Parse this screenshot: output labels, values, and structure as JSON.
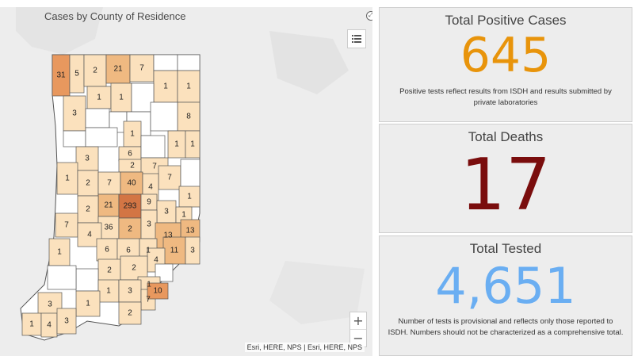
{
  "map": {
    "title": "Cases by County of Residence",
    "attribution": "Esri, HERE, NPS | Esri, HERE, NPS",
    "zoom_in": "+",
    "zoom_out": "−",
    "legend_icon": "list-icon",
    "expand_icon": "expand-icon",
    "colors": {
      "none": "#ffffff",
      "low": "#fbe1bd",
      "mid": "#efb981",
      "high": "#e8985e",
      "max": "#d37544"
    },
    "county_labels": [
      "31",
      "5",
      "2",
      "21",
      "7",
      "1",
      "1",
      "1",
      "1",
      "3",
      "8",
      "1",
      "1",
      "1",
      "6",
      "3",
      "7",
      "1",
      "1",
      "2",
      "2",
      "4",
      "7",
      "7",
      "40",
      "1",
      "21",
      "2",
      "293",
      "9",
      "2",
      "3",
      "36",
      "7",
      "1",
      "3",
      "13",
      "4",
      "1",
      "6",
      "6",
      "1",
      "13",
      "2",
      "4",
      "11",
      "3",
      "2",
      "2",
      "1",
      "1",
      "3",
      "10",
      "7",
      "3",
      "1",
      "2",
      "1",
      "4",
      "3"
    ]
  },
  "positive": {
    "title": "Total Positive Cases",
    "value": "645",
    "note": "Positive tests reflect results from ISDH and results submitted by private laboratories",
    "color": "#e8940b"
  },
  "deaths": {
    "title": "Total Deaths",
    "value": "17",
    "color": "#7a0d0d"
  },
  "tested": {
    "title": "Total Tested",
    "value": "4,651",
    "note": "Number of tests is provisional and reflects only those reported to ISDH. Numbers should not be characterized as a comprehensive total.",
    "color": "#6aaef2"
  }
}
